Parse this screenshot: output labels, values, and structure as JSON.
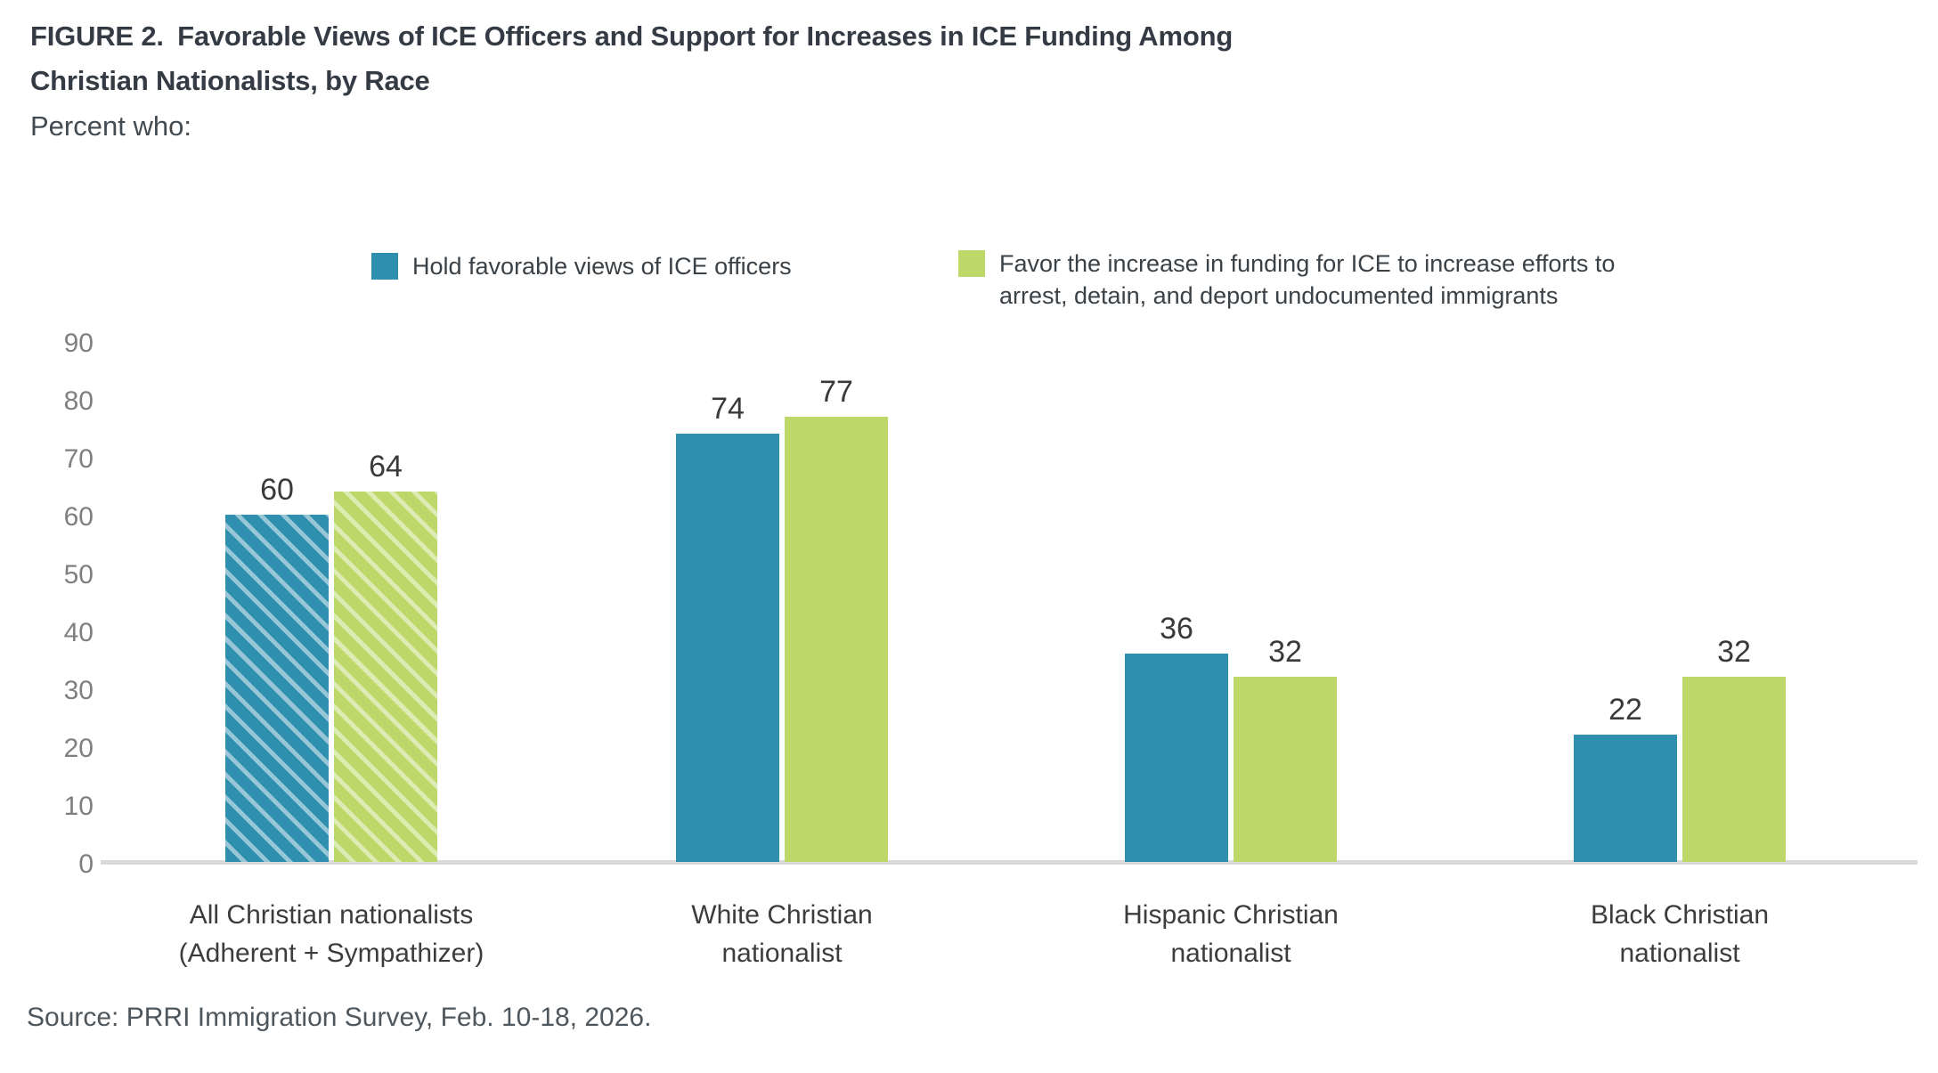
{
  "figure": {
    "title_lines": [
      "FIGURE 2. Favorable Views of ICE Officers and Support for Increases in ICE Funding Among",
      "Christian Nationalists, by Race"
    ],
    "subtitle": "Percent who:",
    "source": "Source: PRRI Immigration Survey, Feb. 10-18, 2026."
  },
  "chart_data": {
    "type": "bar",
    "title": "FIGURE 2. Favorable Views of ICE Officers and Support for Increases in ICE Funding Among Christian Nationalists, by Race",
    "subtitle": "Percent who:",
    "categories": [
      [
        "All Christian nationalists",
        "(Adherent + Sympathizer)"
      ],
      [
        "White Christian",
        "nationalist"
      ],
      [
        "Hispanic Christian",
        "nationalist"
      ],
      [
        "Black Christian",
        "nationalist"
      ]
    ],
    "series": [
      {
        "name": "Hold favorable views of ICE officers",
        "label_lines": [
          "Hold favorable views of ICE officers"
        ],
        "color": "#2f8faf",
        "values": [
          60,
          74,
          36,
          22
        ]
      },
      {
        "name": "Favor the increase in funding for ICE to increase efforts to arrest, detain, and deport undocumented immigrants",
        "label_lines": [
          "Favor the increase in funding for ICE to increase efforts to",
          "arrest, detain, and deport undocumented immigrants"
        ],
        "color": "#bdd869",
        "values": [
          64,
          77,
          32,
          32
        ]
      }
    ],
    "hatched_category_index": 0,
    "hatch_style": "diagonal-stripes",
    "y_ticks": [
      0,
      10,
      20,
      30,
      40,
      50,
      60,
      70,
      80,
      90
    ],
    "ylim": [
      0,
      90
    ],
    "ylabel": "",
    "xlabel": "",
    "legend_position": "top",
    "grid": false,
    "axis_color": "#d9d9d9",
    "source": "Source: PRRI Immigration Survey, Feb. 10-18, 2026."
  }
}
